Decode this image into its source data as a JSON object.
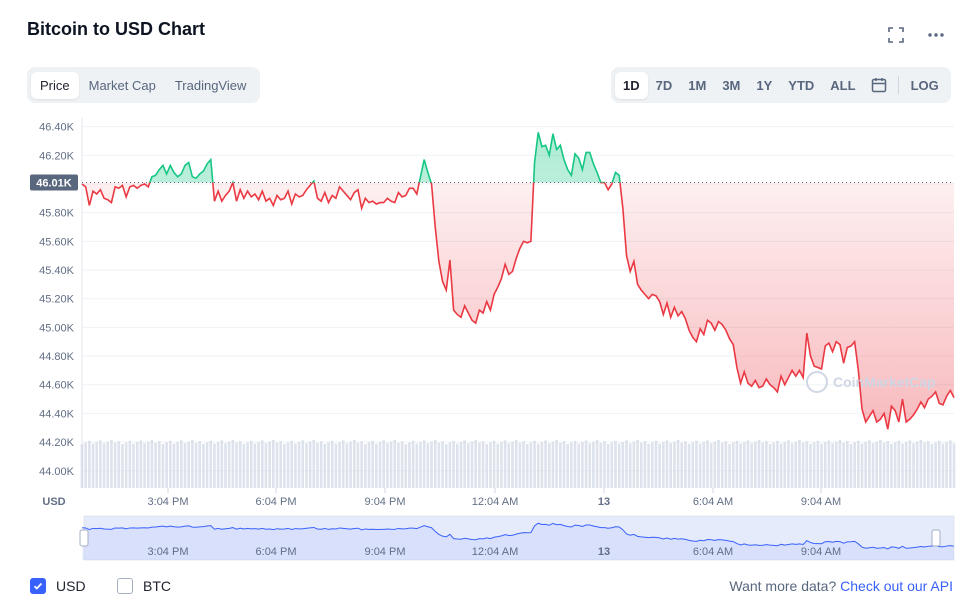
{
  "header": {
    "title": "Bitcoin to USD Chart"
  },
  "tabs": [
    {
      "label": "Price",
      "active": true
    },
    {
      "label": "Market Cap",
      "active": false
    },
    {
      "label": "TradingView",
      "active": false
    }
  ],
  "ranges": [
    {
      "label": "1D",
      "active": true
    },
    {
      "label": "7D",
      "active": false
    },
    {
      "label": "1M",
      "active": false
    },
    {
      "label": "3M",
      "active": false
    },
    {
      "label": "1Y",
      "active": false
    },
    {
      "label": "YTD",
      "active": false
    },
    {
      "label": "ALL",
      "active": false
    }
  ],
  "log_label": "LOG",
  "currency_options": [
    {
      "label": "USD",
      "checked": true
    },
    {
      "label": "BTC",
      "checked": false
    }
  ],
  "footer": {
    "prefix": "Want more data?",
    "link": "Check out our API"
  },
  "colors": {
    "up": "#16c784",
    "down": "#ea3943",
    "accent": "#3861fb",
    "navigator": "#3861fb"
  },
  "chart_data": {
    "type": "line",
    "baseline": 46010,
    "baseline_label": "46.01K",
    "watermark": "CoinMarketCap",
    "ylim": [
      43880,
      46460
    ],
    "yticks": [
      "46.40K",
      "46.20K",
      "46.00K",
      "45.80K",
      "45.60K",
      "45.40K",
      "45.20K",
      "45.00K",
      "44.80K",
      "44.60K",
      "44.40K",
      "44.20K",
      "44.00K"
    ],
    "xlabel": "USD",
    "xticks": [
      "3:04 PM",
      "6:04 PM",
      "9:04 PM",
      "12:04 AM",
      "13",
      "6:04 AM",
      "9:04 AM"
    ],
    "navigator_ticks": [
      "3:04 PM",
      "6:04 PM",
      "9:04 PM",
      "12:04 AM",
      "13",
      "6:04 AM",
      "9:04 AM"
    ],
    "series": [
      {
        "values": [
          46000,
          45980,
          45850,
          45950,
          45930,
          45960,
          45900,
          45890,
          45870,
          45980,
          45970,
          45990,
          45910,
          45980,
          45990,
          45970,
          45990,
          46000,
          45980,
          46050,
          46060,
          46100,
          46130,
          46070,
          46130,
          46080,
          46050,
          46070,
          46130,
          46150,
          46050,
          46040,
          46070,
          46090,
          46140,
          46170,
          45880,
          45950,
          45880,
          45920,
          45950,
          46010,
          45880,
          45960,
          45900,
          45950,
          45910,
          45930,
          45890,
          45950,
          45880,
          45900,
          45850,
          45920,
          45890,
          45900,
          45950,
          45860,
          45930,
          45910,
          45920,
          45960,
          45990,
          46020,
          45900,
          45880,
          45940,
          45870,
          45920,
          45900,
          45980,
          45950,
          45920,
          45890,
          45940,
          45960,
          45830,
          45900,
          45870,
          45880,
          45860,
          45870,
          45870,
          45900,
          45880,
          45870,
          45940,
          45910,
          45920,
          45970,
          45970,
          45930,
          46050,
          46170,
          46080,
          46000,
          45700,
          45460,
          45320,
          45260,
          45470,
          45120,
          45090,
          45070,
          45150,
          45100,
          45050,
          45030,
          45120,
          45100,
          45180,
          45120,
          45230,
          45280,
          45340,
          45440,
          45370,
          45390,
          45480,
          45550,
          45600,
          45590,
          45600,
          46150,
          46360,
          46260,
          46270,
          46200,
          46350,
          46240,
          46270,
          46170,
          46100,
          46060,
          46210,
          46180,
          46100,
          46220,
          46220,
          46140,
          46080,
          46010,
          46010,
          45960,
          46000,
          46080,
          46060,
          45830,
          45500,
          45390,
          45460,
          45300,
          45260,
          45230,
          45200,
          45230,
          45220,
          45180,
          45090,
          45170,
          45070,
          45140,
          45080,
          45110,
          45060,
          44980,
          44930,
          44900,
          44990,
          44950,
          45050,
          45030,
          44980,
          45040,
          45020,
          44980,
          44920,
          44880,
          44720,
          44610,
          44690,
          44610,
          44590,
          44630,
          44580,
          44590,
          44640,
          44600,
          44580,
          44550,
          44660,
          44600,
          44650,
          44700,
          44660,
          44700,
          44650,
          44960,
          44800,
          44730,
          44720,
          44710,
          44870,
          44890,
          44830,
          44900,
          44880,
          44750,
          44860,
          44870,
          44900,
          44700,
          44430,
          44340,
          44380,
          44420,
          44340,
          44360,
          44400,
          44290,
          44450,
          44420,
          44340,
          44500,
          44340,
          44360,
          44390,
          44430,
          44480,
          44440,
          44500,
          44520,
          44550,
          44470,
          44460,
          44520,
          44560,
          44510
        ]
      }
    ]
  }
}
